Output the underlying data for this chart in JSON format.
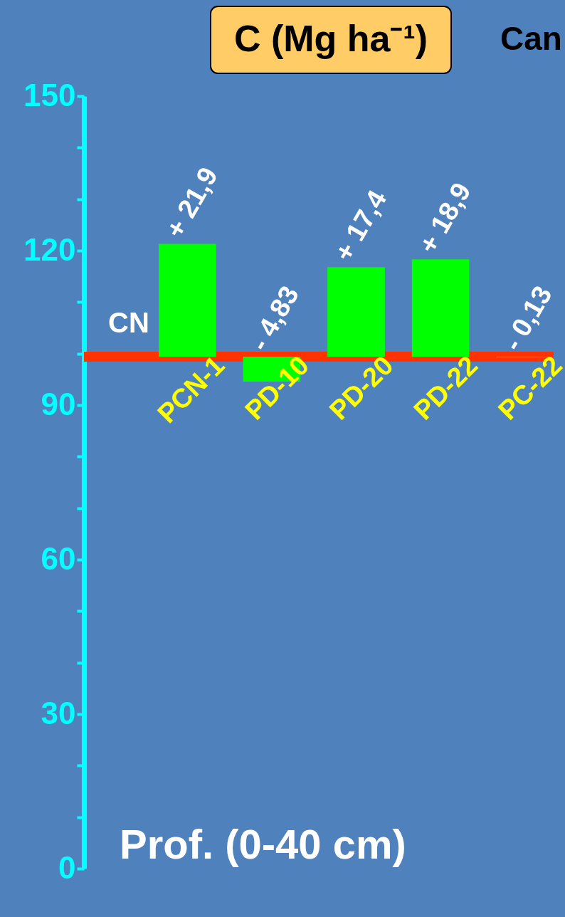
{
  "chart_data": {
    "type": "bar",
    "title": "C (Mg ha⁻¹)",
    "xlabel": "Prof. (0-40 cm)",
    "categories": [
      "PCN-1",
      "PD-10",
      "PD-20",
      "PD-22",
      "PC-22"
    ],
    "values": [
      21.9,
      -4.83,
      17.4,
      18.9,
      -0.13
    ],
    "base": [
      99.4,
      99.4,
      99.4,
      99.4,
      99.4
    ],
    "value_labels": [
      "+ 21,9",
      "- 4,83",
      "+ 17,4",
      "+ 18,9",
      "- 0,13"
    ],
    "color": "#00ff00",
    "ylim": [
      0,
      150
    ],
    "yticks": [
      0,
      {
        "value": 10,
        "label": null
      },
      {
        "value": 20,
        "label": null
      },
      30,
      {
        "value": 40,
        "label": null
      },
      {
        "value": 50,
        "label": null
      },
      60,
      {
        "value": 70,
        "label": null
      },
      {
        "value": 80,
        "label": null
      },
      90,
      {
        "value": 100,
        "label": null
      },
      {
        "value": 110,
        "label": null
      },
      120,
      {
        "value": 130,
        "label": null
      },
      {
        "value": 140,
        "label": null
      },
      150
    ],
    "ref_lines": [
      {
        "axis": "y",
        "value": 99.4,
        "label": "CN",
        "color": "#ff3300"
      }
    ],
    "annotations": [
      "Can"
    ],
    "grid": false
  }
}
